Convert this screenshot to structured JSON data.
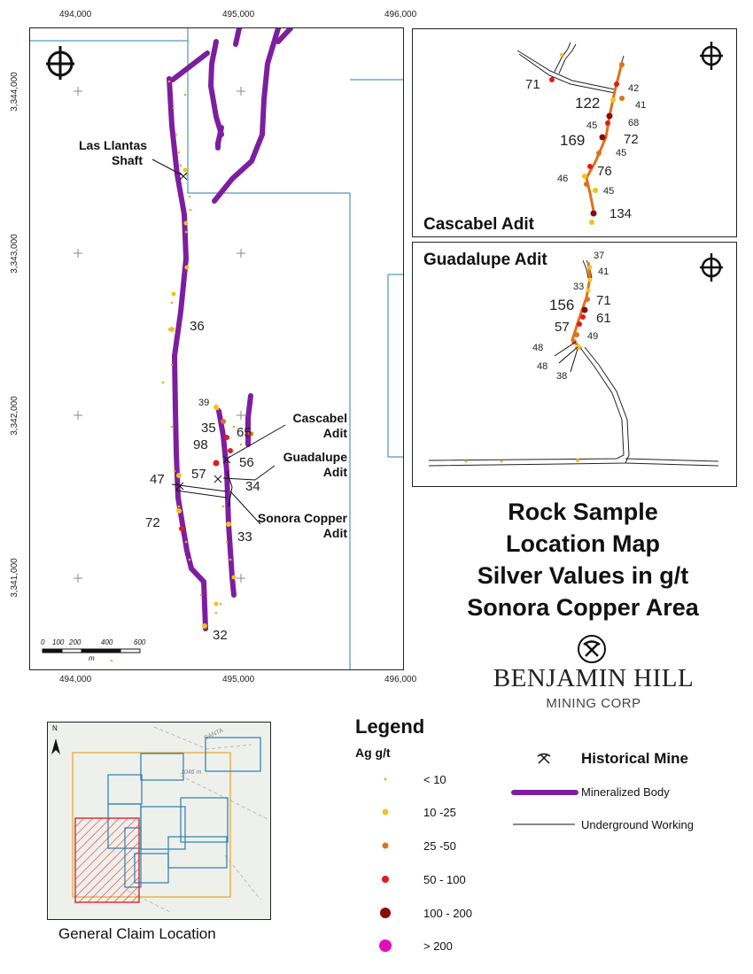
{
  "main_map": {
    "x_ticks_top": [
      "494,000",
      "495,000",
      "496,000"
    ],
    "x_ticks_bottom": [
      "494,000",
      "495,000",
      "496,000"
    ],
    "y_ticks": [
      "3,344,000",
      "3,343,000",
      "3,342,000",
      "3,341,000"
    ],
    "place_labels": {
      "las_llantas": "Las Llantas\nShaft",
      "cascabel": "Cascabel\nAdit",
      "guadalupe": "Guadalupe\nAdit",
      "sonora_copper": "Sonora Copper\nAdit"
    },
    "values": {
      "v36": "36",
      "v39": "39",
      "v35": "35",
      "v65": "65",
      "v98": "98",
      "v56": "56",
      "v57": "57",
      "v47": "47",
      "v34": "34",
      "v72": "72",
      "v33": "33",
      "v32": "32"
    },
    "scale_ticks": [
      "0",
      "100",
      "200",
      "400",
      "600"
    ],
    "scale_unit": "m"
  },
  "cascabel_inset": {
    "title": "Cascabel Adit",
    "values": {
      "v71": "71",
      "v42": "42",
      "v122": "122",
      "v41": "41",
      "v68": "68",
      "v45a": "45",
      "v169": "169",
      "v72": "72",
      "v45b": "45",
      "v76": "76",
      "v46": "46",
      "v45c": "45",
      "v134": "134"
    }
  },
  "guadalupe_inset": {
    "title": "Guadalupe Adit",
    "values": {
      "v37": "37",
      "v41": "41",
      "v33": "33",
      "v71": "71",
      "v156": "156",
      "v61": "61",
      "v57": "57",
      "v49": "49",
      "v48a": "48",
      "v48b": "48",
      "v38": "38"
    }
  },
  "map_title": [
    "Rock Sample",
    "Location Map",
    "Silver Values in g/t",
    "Sonora Copper Area"
  ],
  "company": {
    "name": "BENJAMIN HILL",
    "subtitle": "MINING CORP"
  },
  "locator": {
    "caption": "General Claim Location",
    "north": "N",
    "elevation": "1046 m",
    "road": "SANTA"
  },
  "legend": {
    "title": "Legend",
    "subtitle": "Ag g/t",
    "classes": [
      {
        "label": "< 10",
        "color": "#e8b21e"
      },
      {
        "label": "10 -25",
        "color": "#f2c21b"
      },
      {
        "label": "25 -50",
        "color": "#e0701a"
      },
      {
        "label": "50 - 100",
        "color": "#e41a1a"
      },
      {
        "label": "100 - 200",
        "color": "#8b0a0a"
      },
      {
        "label": "> 200",
        "color": "#e010b8"
      }
    ],
    "historical_mine": "Historical Mine",
    "mineralized_body": "Mineralized Body",
    "underground_working": "Underground Working",
    "mineralized_color": "#7d1ea0"
  }
}
